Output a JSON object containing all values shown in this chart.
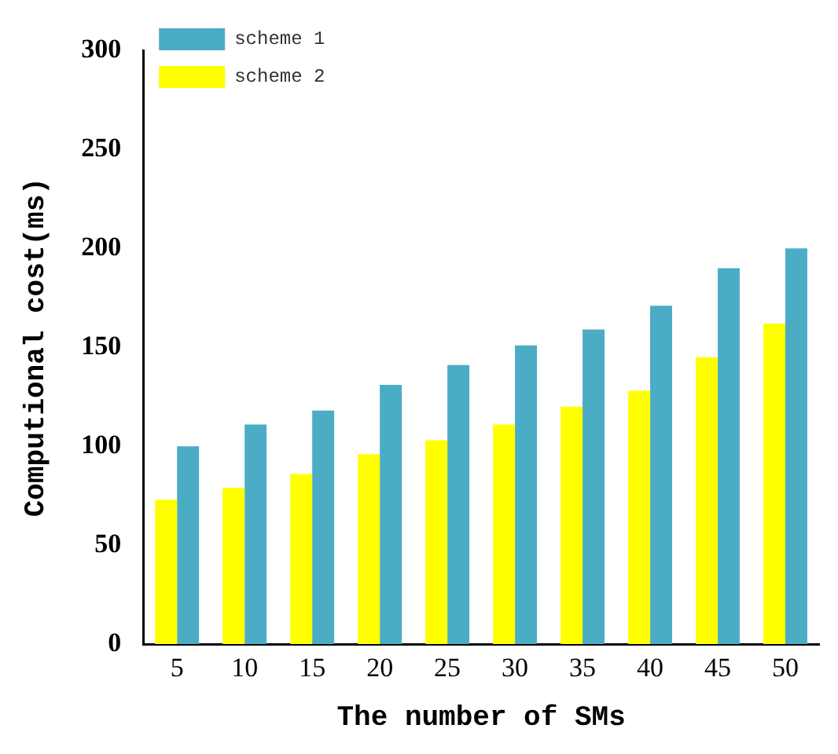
{
  "chart_data": {
    "type": "bar",
    "xlabel": "The number of SMs",
    "ylabel": "Computional cost(ms)",
    "categories": [
      "5",
      "10",
      "15",
      "20",
      "25",
      "30",
      "35",
      "40",
      "45",
      "50"
    ],
    "series": [
      {
        "name": "scheme 2",
        "color": "#ffff00",
        "values": [
          73,
          79,
          86,
          96,
          103,
          111,
          120,
          128,
          145,
          162
        ]
      },
      {
        "name": "scheme 1",
        "color": "#4bacc6",
        "values": [
          100,
          111,
          118,
          131,
          141,
          151,
          159,
          171,
          190,
          200
        ]
      }
    ],
    "ylim": [
      0,
      300
    ],
    "yticks": [
      0,
      50,
      100,
      150,
      200,
      250,
      300
    ],
    "grid": false,
    "legend": "top left"
  }
}
